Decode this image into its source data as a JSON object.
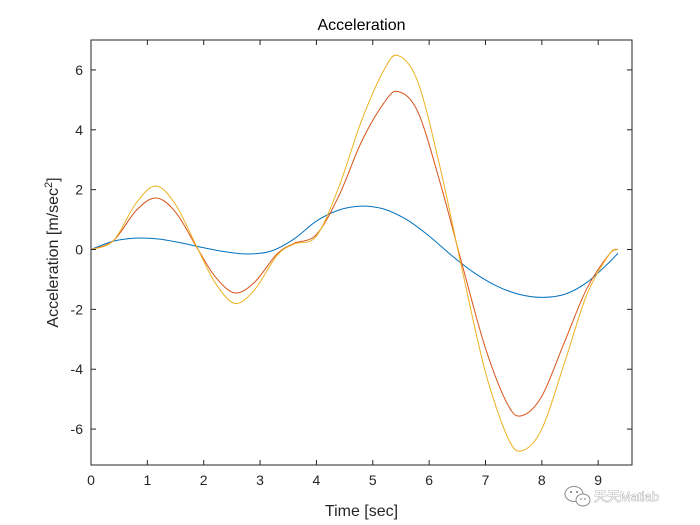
{
  "chart_data": {
    "type": "line",
    "title": "Acceleration",
    "xlabel": "Time [sec]",
    "ylabel_main": "Acceleration [m/sec",
    "ylabel_sup": "2",
    "ylabel_tail": "]",
    "xlim": [
      0,
      9.6
    ],
    "ylim": [
      -7.2,
      7
    ],
    "xticks": [
      0,
      1,
      2,
      3,
      4,
      5,
      6,
      7,
      8,
      9
    ],
    "yticks": [
      -6,
      -4,
      -2,
      0,
      2,
      4,
      6
    ],
    "grid": false,
    "series": [
      {
        "color": "#0072BD",
        "x": [
          0,
          0.4,
          0.8,
          1.2,
          1.6,
          2.0,
          2.4,
          2.8,
          3.2,
          3.6,
          4.0,
          4.4,
          4.8,
          5.2,
          5.6,
          6.0,
          6.4,
          6.8,
          7.2,
          7.6,
          8.0,
          8.4,
          8.8,
          9.2,
          9.35
        ],
        "y": [
          0.0,
          0.28,
          0.38,
          0.35,
          0.22,
          0.06,
          -0.08,
          -0.15,
          -0.05,
          0.35,
          0.95,
          1.32,
          1.45,
          1.35,
          1.0,
          0.45,
          -0.2,
          -0.78,
          -1.22,
          -1.5,
          -1.6,
          -1.5,
          -1.1,
          -0.42,
          -0.12
        ]
      },
      {
        "color": "#D95319",
        "x": [
          0,
          0.4,
          0.8,
          1.15,
          1.5,
          1.9,
          2.2,
          2.55,
          2.9,
          3.3,
          3.6,
          4.0,
          4.4,
          4.8,
          5.2,
          5.45,
          5.8,
          6.2,
          6.6,
          7.0,
          7.4,
          7.65,
          8.0,
          8.4,
          8.8,
          9.2,
          9.35
        ],
        "y": [
          0.0,
          0.3,
          1.3,
          1.72,
          1.25,
          0.0,
          -0.9,
          -1.45,
          -1.1,
          -0.15,
          0.2,
          0.5,
          1.8,
          3.6,
          4.9,
          5.28,
          4.6,
          2.2,
          -0.6,
          -3.3,
          -5.2,
          -5.55,
          -4.9,
          -3.1,
          -1.3,
          -0.15,
          0.0
        ]
      },
      {
        "color": "#EDB120",
        "x": [
          0,
          0.4,
          0.8,
          1.15,
          1.5,
          1.9,
          2.2,
          2.55,
          2.9,
          3.3,
          3.6,
          4.0,
          4.4,
          4.8,
          5.2,
          5.45,
          5.8,
          6.2,
          6.6,
          7.0,
          7.4,
          7.65,
          8.0,
          8.4,
          8.8,
          9.2,
          9.35
        ],
        "y": [
          0.0,
          0.3,
          1.55,
          2.12,
          1.5,
          0.0,
          -1.1,
          -1.8,
          -1.35,
          -0.2,
          0.18,
          0.45,
          2.1,
          4.3,
          6.0,
          6.48,
          5.6,
          2.7,
          -0.8,
          -4.1,
          -6.3,
          -6.72,
          -6.0,
          -3.8,
          -1.5,
          -0.15,
          0.0
        ]
      }
    ]
  },
  "watermark": {
    "icon": "wechat-icon",
    "text": "天天Matlab"
  }
}
